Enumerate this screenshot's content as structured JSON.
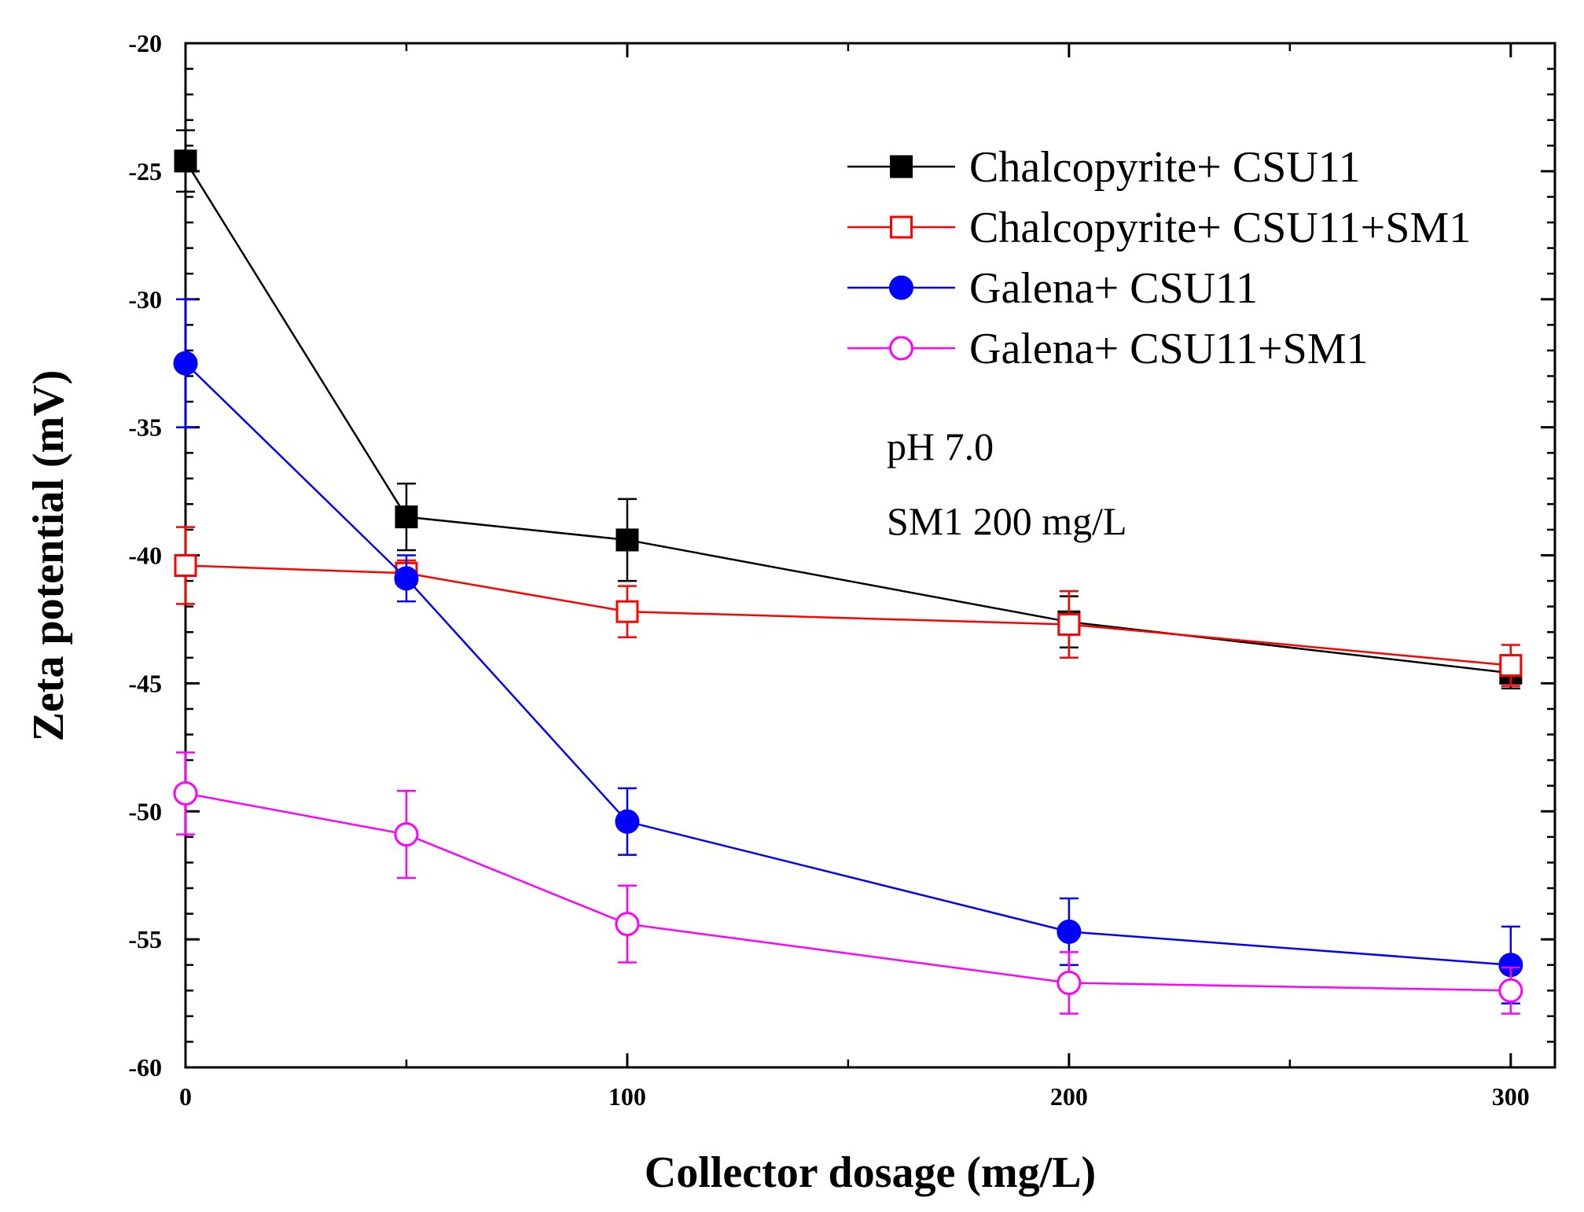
{
  "chart_data": {
    "type": "line",
    "title": "",
    "xlabel": "Collector dosage (mg/L)",
    "ylabel": "Zeta potential (mV)",
    "xlim": [
      0,
      310
    ],
    "ylim": [
      -60,
      -20
    ],
    "xticks": [
      0,
      100,
      200,
      300
    ],
    "yticks": [
      -20,
      -25,
      -30,
      -35,
      -40,
      -45,
      -50,
      -55,
      -60
    ],
    "x_minor_step": 50,
    "y_minor_step": 1,
    "grid": false,
    "legend_position": "top-right",
    "series": [
      {
        "name": "Chalcopyrite+ CSU11",
        "color": "#000000",
        "marker": "filled-square",
        "x": [
          0,
          50,
          100,
          200,
          300
        ],
        "y": [
          -24.6,
          -38.5,
          -39.4,
          -42.6,
          -44.6
        ],
        "err": [
          1.2,
          1.3,
          1.6,
          1.0,
          0.6
        ]
      },
      {
        "name": "Chalcopyrite+ CSU11+SM1",
        "color": "#ff0000",
        "marker": "open-square",
        "x": [
          0,
          50,
          100,
          200,
          300
        ],
        "y": [
          -40.4,
          -40.7,
          -42.2,
          -42.7,
          -44.3
        ],
        "err": [
          1.5,
          0.5,
          1.0,
          1.3,
          0.8
        ]
      },
      {
        "name": "Galena+ CSU11",
        "color": "#0000ff",
        "marker": "filled-circle",
        "x": [
          0,
          50,
          100,
          200,
          300
        ],
        "y": [
          -32.5,
          -40.9,
          -50.4,
          -54.7,
          -56.0
        ],
        "err": [
          2.5,
          0.9,
          1.3,
          1.3,
          1.5
        ]
      },
      {
        "name": "Galena+ CSU11+SM1",
        "color": "#ff00ff",
        "marker": "open-circle",
        "x": [
          0,
          50,
          100,
          200,
          300
        ],
        "y": [
          -49.3,
          -50.9,
          -54.4,
          -56.7,
          -57.0
        ],
        "err": [
          1.6,
          1.7,
          1.5,
          1.2,
          0.9
        ]
      }
    ],
    "annotations": [
      "pH 7.0",
      "SM1 200 mg/L"
    ]
  }
}
